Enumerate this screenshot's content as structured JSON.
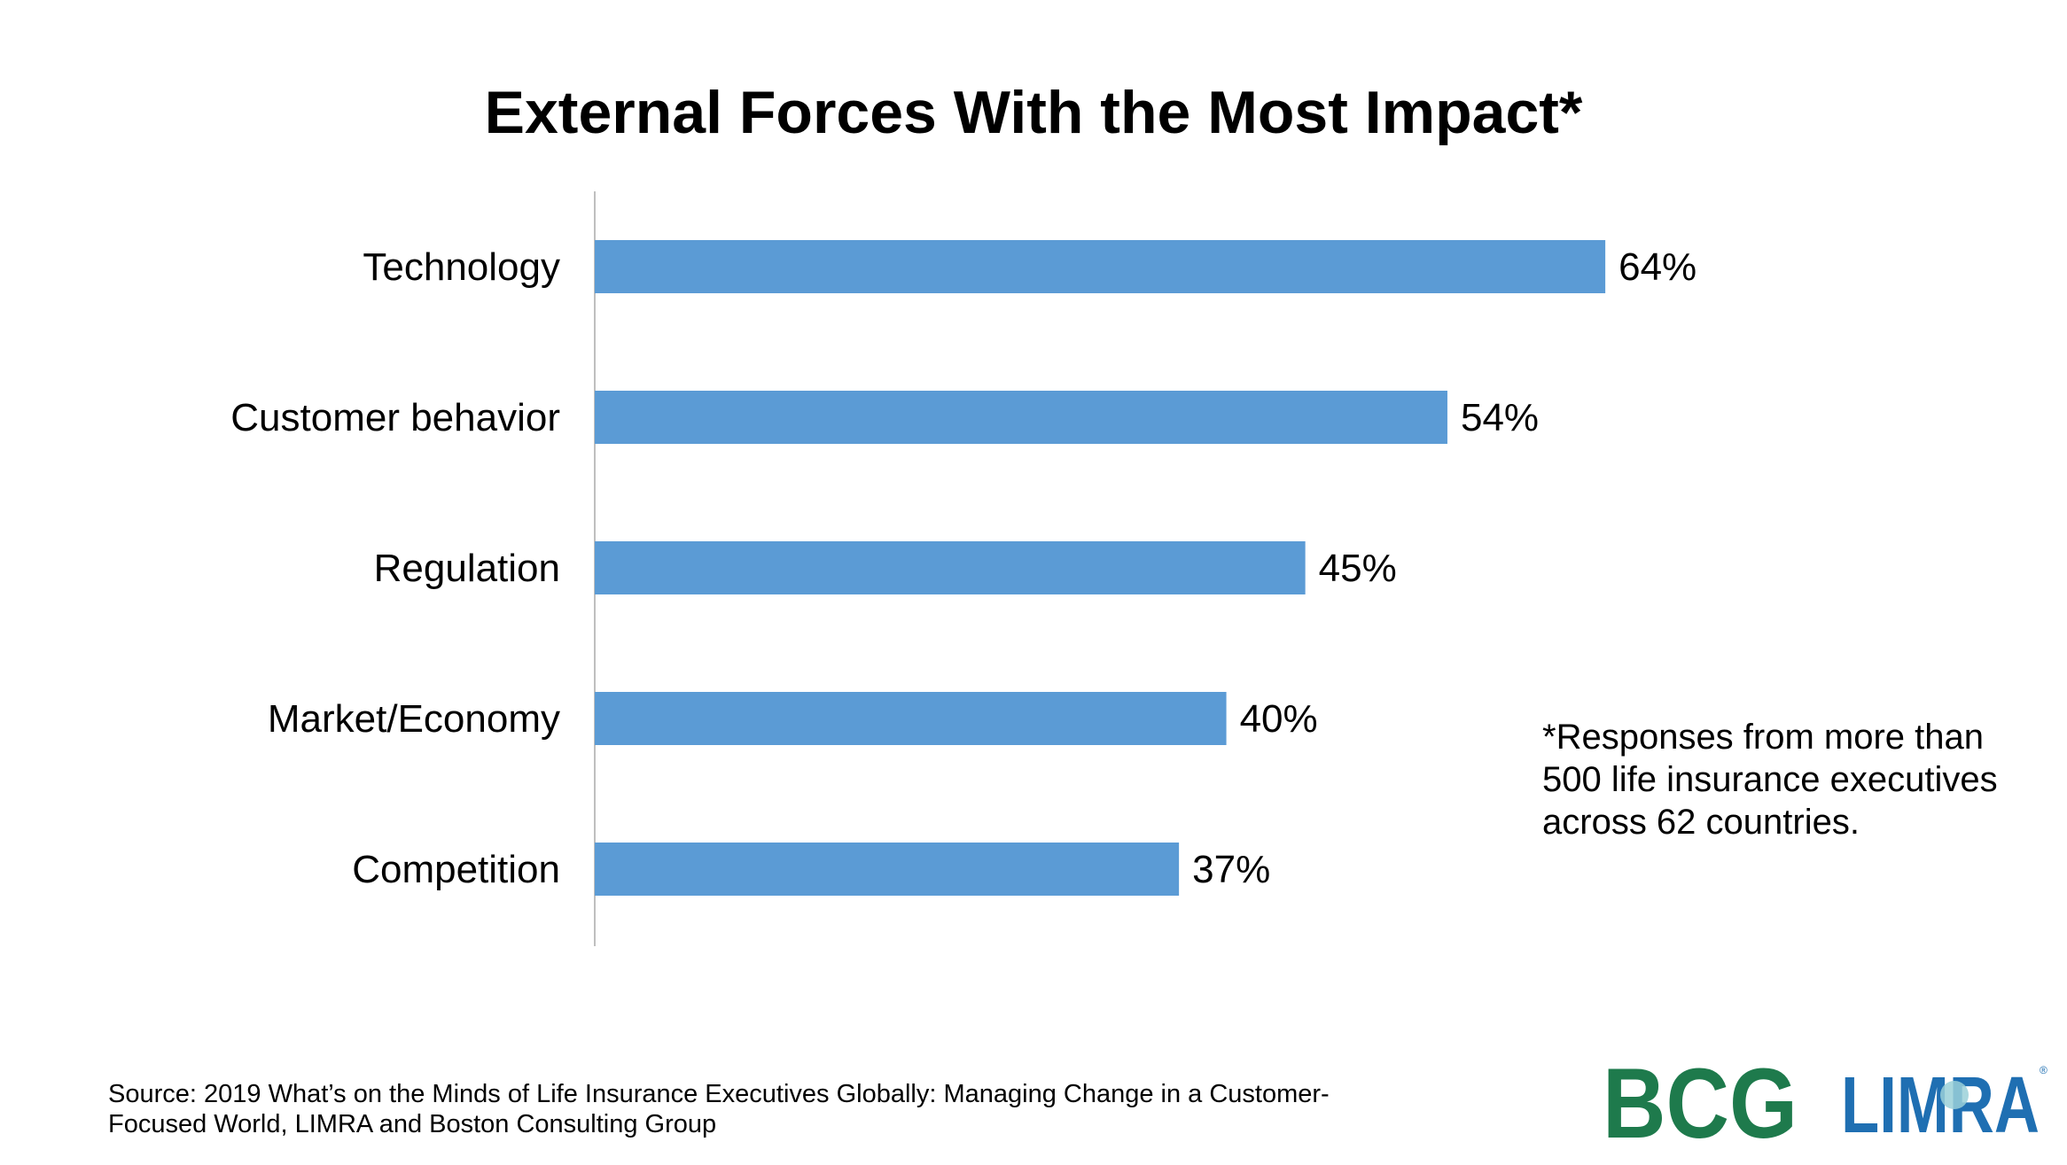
{
  "colors": {
    "bar": "#5B9BD5",
    "axis": "#BFBFBF",
    "bcg_green": "#1E7A4C",
    "limra_blue": "#1F6FB2"
  },
  "chart_data": {
    "type": "bar",
    "orientation": "horizontal",
    "title": "External Forces With the Most Impact*",
    "categories": [
      "Technology",
      "Customer behavior",
      "Regulation",
      "Market/Economy",
      "Competition"
    ],
    "values": [
      64,
      54,
      45,
      40,
      37
    ],
    "value_labels": [
      "64%",
      "54%",
      "45%",
      "40%",
      "37%"
    ],
    "unit": "%",
    "xlim": [
      0,
      70
    ],
    "grid": false,
    "legend": "none"
  },
  "footnote": {
    "lines": [
      "*Responses from more than",
      "500 life insurance executives",
      "across 62 countries."
    ]
  },
  "source": {
    "lines": [
      "Source: 2019 What’s on the Minds of Life Insurance Executives Globally: Managing Change in a Customer-",
      "Focused World, LIMRA and Boston Consulting Group"
    ]
  },
  "logos": {
    "bcg": "BCG",
    "limra": "LIMRA"
  }
}
